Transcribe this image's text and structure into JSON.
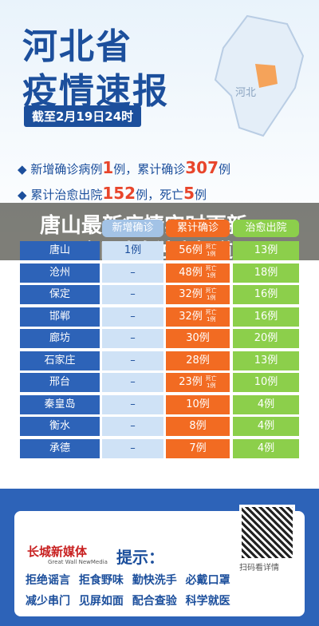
{
  "title": [
    "河北省",
    "疫情速报"
  ],
  "date": "截至2月19日24时",
  "map_label": "河北",
  "summary": [
    [
      "新增确诊病例",
      "1",
      "例，累计确诊",
      "307",
      "例"
    ],
    [
      "累计治愈出院",
      "152",
      "例，死亡",
      "5",
      "例"
    ]
  ],
  "table": {
    "headers": [
      "新增确诊",
      "累计确诊",
      "治愈出院"
    ],
    "rows": [
      [
        "唐山",
        "1例",
        "56例",
        "死亡1例",
        "13例"
      ],
      [
        "沧州",
        "–",
        "48例",
        "死亡1例",
        "18例"
      ],
      [
        "保定",
        "–",
        "32例",
        "死亡1例",
        "16例"
      ],
      [
        "邯郸",
        "–",
        "32例",
        "死亡1例",
        "16例"
      ],
      [
        "廊坊",
        "–",
        "30例",
        "",
        "20例"
      ],
      [
        "石家庄",
        "–",
        "28例",
        "",
        "13例"
      ],
      [
        "邢台",
        "–",
        "23例",
        "死亡1例",
        "10例"
      ],
      [
        "秦皇岛",
        "–",
        "10例",
        "",
        "4例"
      ],
      [
        "衡水",
        "–",
        "8例",
        "",
        "4例"
      ],
      [
        "承德",
        "–",
        "7例",
        "",
        "4例"
      ]
    ]
  },
  "banner": [
    "唐山最新疫情实时更新",
    "今日头条独家报道"
  ],
  "footer": {
    "logo": "长城新媒体",
    "logo_en": "Great Wall NewMedia",
    "tip": "提示：",
    "qr_text": "扫码看详情",
    "tips": [
      [
        "拒绝谣言",
        "拒食野味",
        "勤快洗手",
        "必戴口罩"
      ],
      [
        "减少串门",
        "见屏如面",
        "配合查验",
        "科学就医"
      ]
    ]
  }
}
